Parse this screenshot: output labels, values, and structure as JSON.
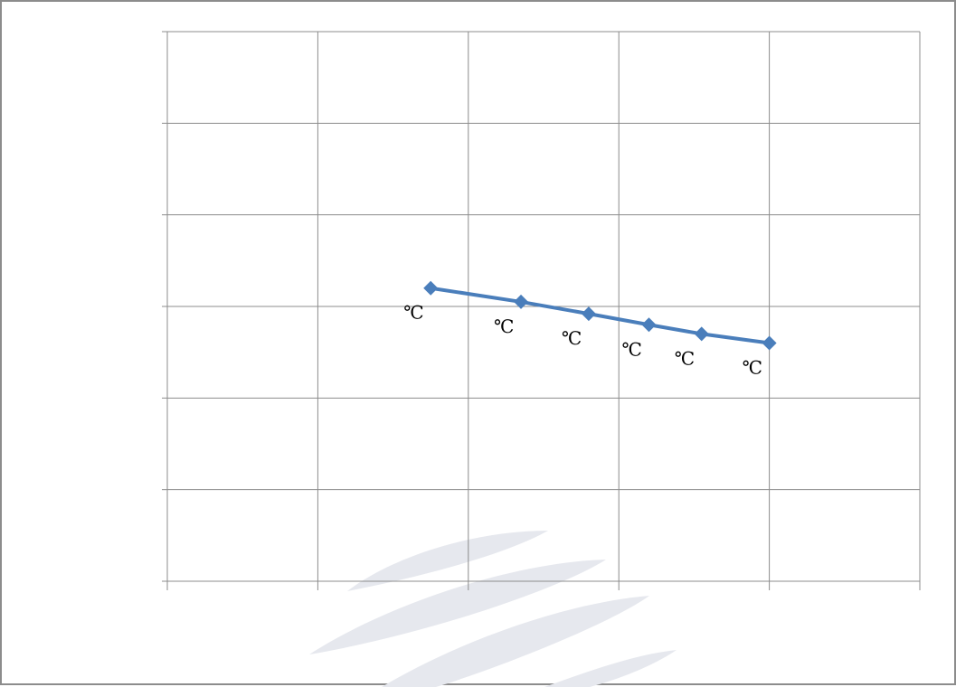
{
  "chart_data": {
    "type": "line",
    "title": "",
    "xlabel": "",
    "ylabel": "",
    "x_categories": 5,
    "y_divisions": 6,
    "ylim": [
      0,
      6
    ],
    "grid": true,
    "legend": "none",
    "series": [
      {
        "x": [
          1.75,
          2.35,
          2.8,
          3.2,
          3.55,
          4.0
        ],
        "values": [
          3.2,
          3.05,
          2.92,
          2.8,
          2.7,
          2.6
        ],
        "data_labels": [
          "℃",
          "℃",
          "℃",
          "℃",
          "℃",
          "℃"
        ],
        "color": "#4a7ebb",
        "marker": "diamond"
      }
    ]
  },
  "colors": {
    "grid": "#8c8c8c",
    "series": "#4a7ebb",
    "watermark": "#e6e8ee"
  }
}
